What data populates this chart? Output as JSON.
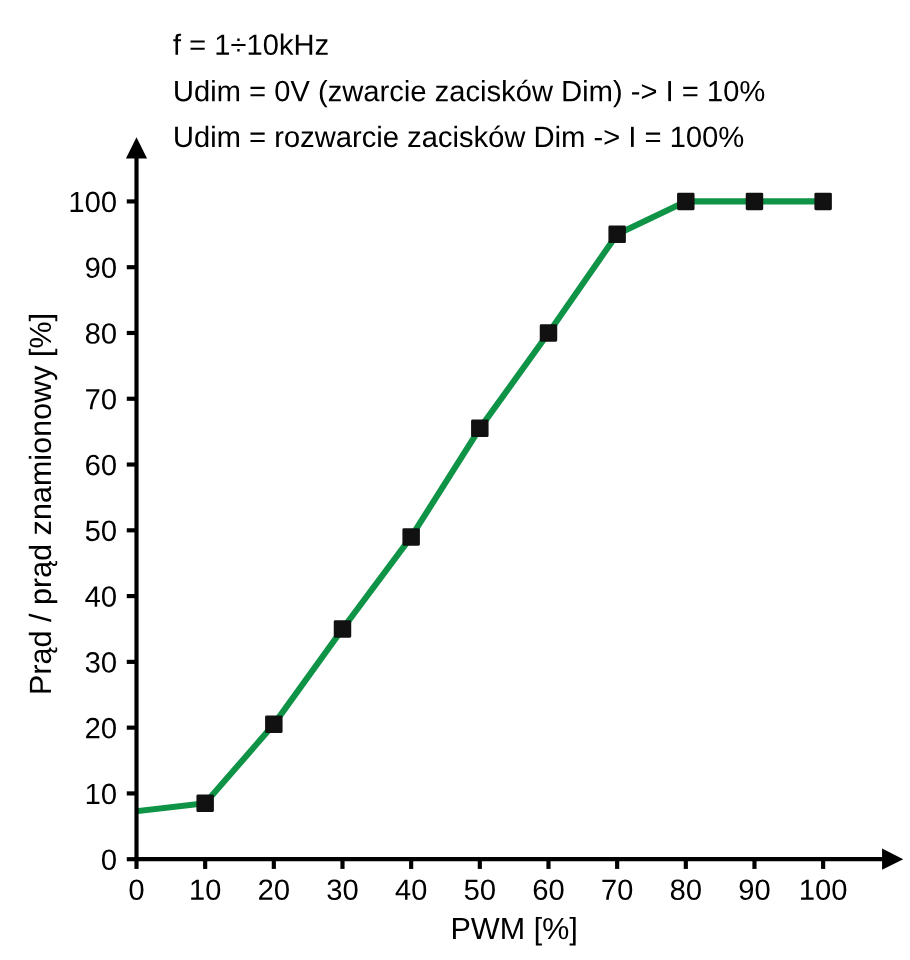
{
  "chart_data": {
    "type": "line",
    "xlabel": "PWM [%]",
    "ylabel": "Prąd / prąd znamionowy [%]",
    "annotations": [
      "f = 1÷10kHz",
      "Udim = 0V (zwarcie zacisków Dim) -> I = 10%",
      "Udim = rozwarcie zacisków Dim -> I = 100%"
    ],
    "series": [
      {
        "color": "#0f9447",
        "x": [
          0,
          10,
          20,
          30,
          40,
          50,
          60,
          70,
          80,
          90,
          100
        ],
        "values": [
          7.3,
          8.5,
          20.5,
          35,
          49,
          65.5,
          80,
          95,
          100,
          100,
          100
        ]
      },
      {
        "type": "scatter",
        "color": "#111111",
        "marker": "square",
        "x": [
          10,
          20,
          30,
          40,
          50,
          60,
          70,
          80,
          90,
          100
        ],
        "values": [
          8.5,
          20.5,
          35,
          49,
          65.5,
          80,
          95,
          100,
          100,
          100
        ]
      }
    ],
    "xlim": [
      0,
      110
    ],
    "ylim": [
      0,
      108
    ],
    "xticks": [
      0,
      10,
      20,
      30,
      40,
      50,
      60,
      70,
      80,
      90,
      100
    ],
    "yticks": [
      0,
      10,
      20,
      30,
      40,
      50,
      60,
      70,
      80,
      90,
      100
    ],
    "grid": false,
    "legend": false
  }
}
